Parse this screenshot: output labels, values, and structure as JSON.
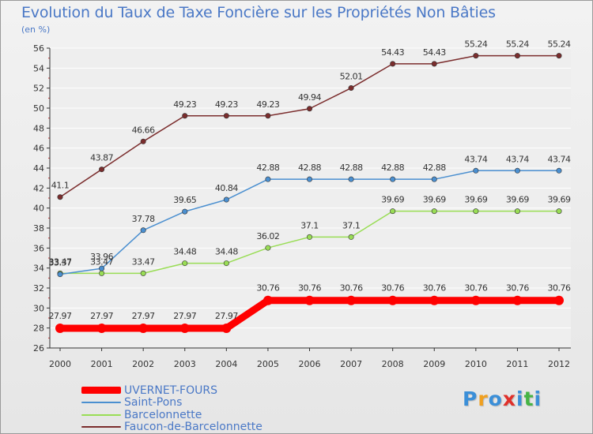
{
  "title": "Evolution du Taux de Taxe Foncière sur les Propriétés Non Bâties",
  "subtitle": "(en %)",
  "logo": {
    "text": "Proxiti",
    "colors": [
      "#3b8fd8",
      "#f0a020",
      "#3b8fd8",
      "#e0302a",
      "#3b8fd8",
      "#46b445",
      "#3b8fd8"
    ]
  },
  "colors": {
    "background": "#eeeeee",
    "grid": "#ffffff",
    "axis": "#333333",
    "tick_label": "#333333",
    "legend_text": "#4a78c6",
    "title": "#4a78c6"
  },
  "chart_data": {
    "type": "line",
    "title": "Evolution du Taux de Taxe Foncière sur les Propriétés Non Bâties",
    "ylabel": "(en %)",
    "xlabel": "",
    "x": [
      "2000",
      "2001",
      "2002",
      "2003",
      "2004",
      "2005",
      "2006",
      "2007",
      "2008",
      "2009",
      "2010",
      "2011",
      "2012"
    ],
    "ylim": [
      26,
      56
    ],
    "yticks": [
      26,
      28,
      30,
      32,
      34,
      36,
      38,
      40,
      42,
      44,
      46,
      48,
      50,
      52,
      54,
      56
    ],
    "grid": "horizontal",
    "legend_position": "bottom-left",
    "series": [
      {
        "name": "UVERNET-FOURS",
        "color": "#ff0000",
        "values": [
          27.97,
          27.97,
          27.97,
          27.97,
          27.97,
          30.76,
          30.76,
          30.76,
          30.76,
          30.76,
          30.76,
          30.76,
          30.76
        ],
        "labels": [
          "27.97",
          "27.97",
          "27.97",
          "27.97",
          "27.97",
          "30.76",
          "30.76",
          "30.76",
          "30.76",
          "30.76",
          "30.76",
          "30.76",
          "30.76"
        ]
      },
      {
        "name": "Saint-Pons",
        "color": "#4a8fd0",
        "values": [
          33.37,
          33.96,
          37.78,
          39.65,
          40.84,
          42.88,
          42.88,
          42.88,
          42.88,
          42.88,
          43.74,
          43.74,
          43.74
        ],
        "labels": [
          "33.37",
          "33.96",
          "37.78",
          "39.65",
          "40.84",
          "42.88",
          "42.88",
          "42.88",
          "42.88",
          "42.88",
          "43.74",
          "43.74",
          "43.74"
        ]
      },
      {
        "name": "Barcelonnette",
        "color": "#99dd55",
        "values": [
          33.47,
          33.47,
          33.47,
          34.48,
          34.48,
          36.02,
          37.1,
          37.1,
          39.69,
          39.69,
          39.69,
          39.69,
          39.69
        ],
        "labels": [
          "33.47",
          "33.47",
          "33.47",
          "34.48",
          "34.48",
          "36.02",
          "37.1",
          "37.1",
          "39.69",
          "39.69",
          "39.69",
          "39.69",
          "39.69"
        ]
      },
      {
        "name": "Faucon-de-Barcelonnette",
        "color": "#7b2d2d",
        "values": [
          41.1,
          43.87,
          46.66,
          49.23,
          49.23,
          49.23,
          49.94,
          52.01,
          54.43,
          54.43,
          55.24,
          55.24,
          55.24
        ],
        "labels": [
          "41.1",
          "43.87",
          "46.66",
          "49.23",
          "49.23",
          "49.23",
          "49.94",
          "52.01",
          "54.43",
          "54.43",
          "55.24",
          "55.24",
          "55.24"
        ]
      }
    ]
  }
}
